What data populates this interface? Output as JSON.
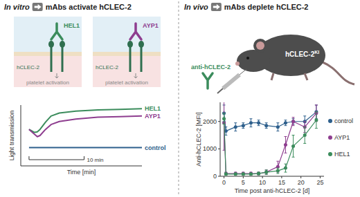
{
  "panels": [
    {
      "title_em": "In vitro",
      "title": "mAbs activate hCLEC-2",
      "diagram": [
        {
          "antibody": "HEL1",
          "receptor": "hCLEC-2",
          "effect": "platelet activation"
        },
        {
          "antibody": "AYP1",
          "receptor": "hCLEC-2",
          "effect": "platelet activation"
        }
      ]
    },
    {
      "title_em": "In vivo",
      "title": "mAbs deplete hCLEC-2",
      "injection": "anti-hCLEC-2",
      "mouse": {
        "label": "hCLEC-2",
        "sup": "KI"
      }
    }
  ],
  "chart_data": [
    {
      "type": "line",
      "xlabel": "Time [min]",
      "ylabel": "Light transmission",
      "xlim": [
        0,
        22
      ],
      "ylim": [
        0,
        100
      ],
      "tick_labels": false,
      "legend": "right",
      "scale_bar": {
        "value": 10,
        "label": "10 min"
      },
      "x": [
        1.5,
        2.5,
        3,
        3.5,
        4.5,
        5.5,
        7,
        10,
        14,
        18,
        22
      ],
      "series": [
        {
          "name": "HEL1",
          "color": "#3b8c5c",
          "values": [
            60,
            55,
            56,
            60,
            72,
            82,
            87,
            90,
            92,
            93,
            94
          ]
        },
        {
          "name": "AYP1",
          "color": "#8e3d8f",
          "values": [
            60,
            52,
            48,
            50,
            60,
            68,
            73,
            77,
            80,
            81,
            82
          ]
        },
        {
          "name": "control",
          "color": "#2d5f8c",
          "values": [
            30,
            30,
            30,
            30,
            30,
            30,
            30,
            30,
            30,
            30,
            30
          ]
        }
      ]
    },
    {
      "type": "line",
      "xlabel": "Time post anti-hCLEC-2 [d]",
      "ylabel": "Anti-hCLEC-2 [MFI]",
      "xlim": [
        -1,
        26
      ],
      "ylim": [
        0,
        2700
      ],
      "xticks": [
        0,
        5,
        10,
        15,
        20,
        25
      ],
      "yticks": [
        0,
        1000,
        2000
      ],
      "legend": "right",
      "marker": "circle",
      "x": [
        0,
        0.5,
        3,
        5,
        7,
        9,
        11,
        14,
        16,
        18,
        21,
        24
      ],
      "series": [
        {
          "name": "control",
          "color": "#2d5f8c",
          "values": [
            2300,
            1650,
            1800,
            1850,
            1950,
            1950,
            1850,
            1800,
            1950,
            2000,
            2000,
            2350
          ],
          "errors": [
            300,
            150,
            150,
            100,
            150,
            100,
            100,
            150,
            100,
            100,
            200,
            250
          ]
        },
        {
          "name": "AYP1",
          "color": "#8e3d8f",
          "values": [
            1950,
            100,
            100,
            100,
            100,
            100,
            150,
            350,
            1150,
            2000,
            1800,
            2300
          ],
          "errors": [
            1000,
            50,
            50,
            50,
            50,
            50,
            80,
            200,
            300,
            150,
            200,
            300
          ]
        },
        {
          "name": "HEL1",
          "color": "#3b8c5c",
          "values": [
            2100,
            80,
            80,
            80,
            80,
            100,
            150,
            200,
            300,
            1100,
            1500,
            2050
          ],
          "errors": [
            200,
            40,
            40,
            40,
            40,
            50,
            80,
            100,
            150,
            400,
            300,
            300
          ]
        }
      ]
    }
  ]
}
